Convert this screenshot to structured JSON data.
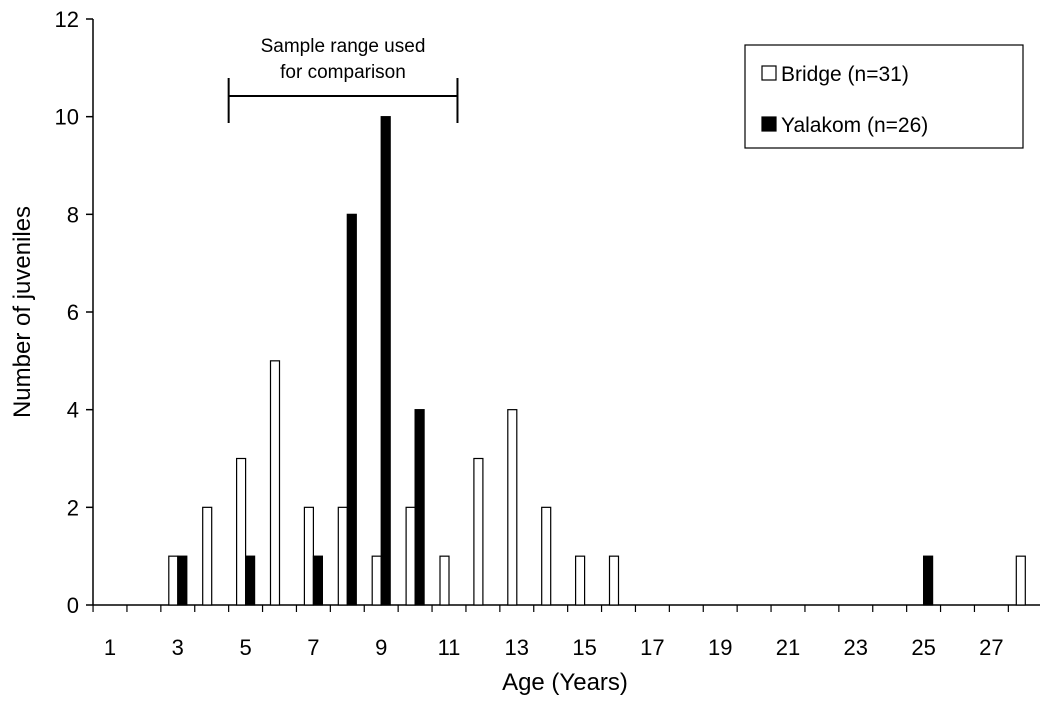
{
  "chart_data": {
    "type": "bar",
    "xlabel": "Age (Years)",
    "ylabel": "Number of juveniles",
    "ylim": [
      0,
      12
    ],
    "yticks": [
      0,
      2,
      4,
      6,
      8,
      10,
      12
    ],
    "xticks": [
      1,
      3,
      5,
      7,
      9,
      11,
      13,
      15,
      17,
      19,
      21,
      23,
      25,
      27
    ],
    "categories": [
      1,
      2,
      3,
      4,
      5,
      6,
      7,
      8,
      9,
      10,
      11,
      12,
      13,
      14,
      15,
      16,
      17,
      18,
      19,
      20,
      21,
      22,
      23,
      24,
      25,
      26,
      27,
      28
    ],
    "series": [
      {
        "name": "Bridge (n=31)",
        "color": "#ffffff",
        "values": [
          0,
          0,
          1,
          2,
          3,
          5,
          2,
          2,
          1,
          2,
          1,
          3,
          4,
          2,
          1,
          1,
          0,
          0,
          0,
          0,
          0,
          0,
          0,
          0,
          0,
          0,
          0,
          1
        ]
      },
      {
        "name": "Yalakom (n=26)",
        "color": "#000000",
        "values": [
          0,
          0,
          1,
          0,
          1,
          0,
          1,
          8,
          10,
          4,
          0,
          0,
          0,
          0,
          0,
          0,
          0,
          0,
          0,
          0,
          0,
          0,
          0,
          0,
          1,
          0,
          0,
          0
        ]
      }
    ],
    "annotation": {
      "line1": "Sample range used",
      "line2": "for comparison",
      "range": [
        4.5,
        11.25
      ]
    },
    "legend_position": "top-right",
    "grid": false
  }
}
